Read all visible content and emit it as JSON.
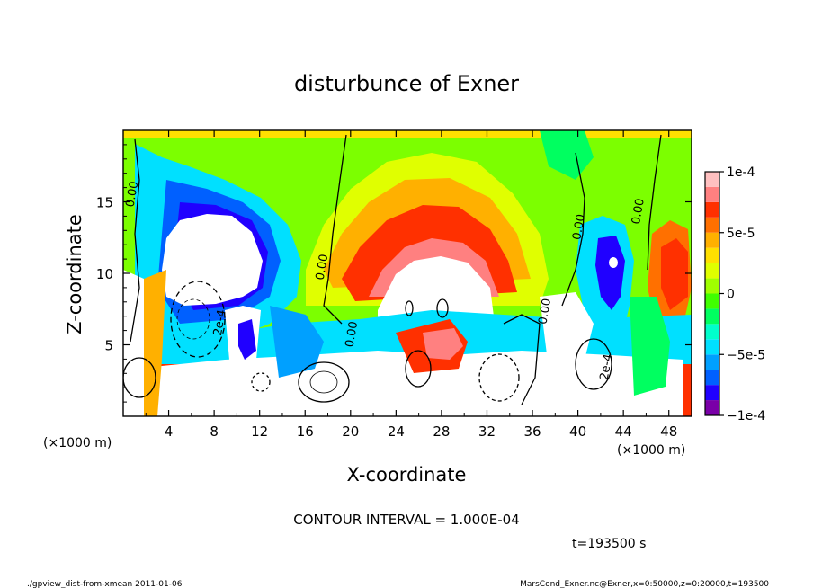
{
  "chart_data": {
    "type": "heatmap",
    "title": "disturbunce of Exner",
    "xlabel": "X-coordinate",
    "ylabel": "Z-coordinate",
    "x_unit_label": "(×1000 m)",
    "x_unit_label_right": "(×1000 m)",
    "xlim": [
      0,
      50
    ],
    "ylim": [
      0,
      20
    ],
    "x_ticks": [
      4,
      8,
      12,
      16,
      20,
      24,
      28,
      32,
      36,
      40,
      44,
      48
    ],
    "x_tick_labels": [
      "4",
      "8",
      "12",
      "16",
      "20",
      "24",
      "28",
      "32",
      "36",
      "40",
      "44",
      "48"
    ],
    "y_ticks": [
      5,
      10,
      15
    ],
    "y_tick_labels": [
      "5",
      "10",
      "15"
    ],
    "colorbar": {
      "min": -0.0001,
      "max": 0.0001,
      "tick_values": [
        0.0001,
        5e-05,
        0,
        -5e-05,
        -0.0001
      ],
      "tick_labels": [
        "1e-4",
        "5e-5",
        "0",
        "−5e-5",
        "−1e-4"
      ],
      "colors": [
        "#7a00a8",
        "#2000ff",
        "#0060ff",
        "#00a0ff",
        "#00e0ff",
        "#00ffcc",
        "#00ff60",
        "#40ff00",
        "#a0ff00",
        "#e0ff00",
        "#ffe000",
        "#ffb000",
        "#ff7000",
        "#ff3000",
        "#ff8080",
        "#ffc0c0"
      ]
    },
    "contour_labels": [
      {
        "text": "0.00",
        "x": 0.9,
        "z": 14.6
      },
      {
        "text": "0.00",
        "x": 17.6,
        "z": 9.5
      },
      {
        "text": "0.00",
        "x": 20.2,
        "z": 4.8
      },
      {
        "text": "0.00",
        "x": 37.2,
        "z": 6.4
      },
      {
        "text": "0.00",
        "x": 40.2,
        "z": 12.3
      },
      {
        "text": "0.00",
        "x": 45.4,
        "z": 13.4
      },
      {
        "text": "2e-4",
        "x": 8.6,
        "z": 5.6
      },
      {
        "text": "2e-4",
        "x": 42.6,
        "z": 2.5
      }
    ],
    "grid": false,
    "legend": "right"
  },
  "contour_interval": "CONTOUR INTERVAL = 1.000E-04",
  "time_label": "t=193500 s",
  "footer_left": "./gpview_dist-from-xmean   2011-01-06",
  "footer_right": "MarsCond_Exner.nc@Exner,x=0:50000,z=0:20000,t=193500"
}
